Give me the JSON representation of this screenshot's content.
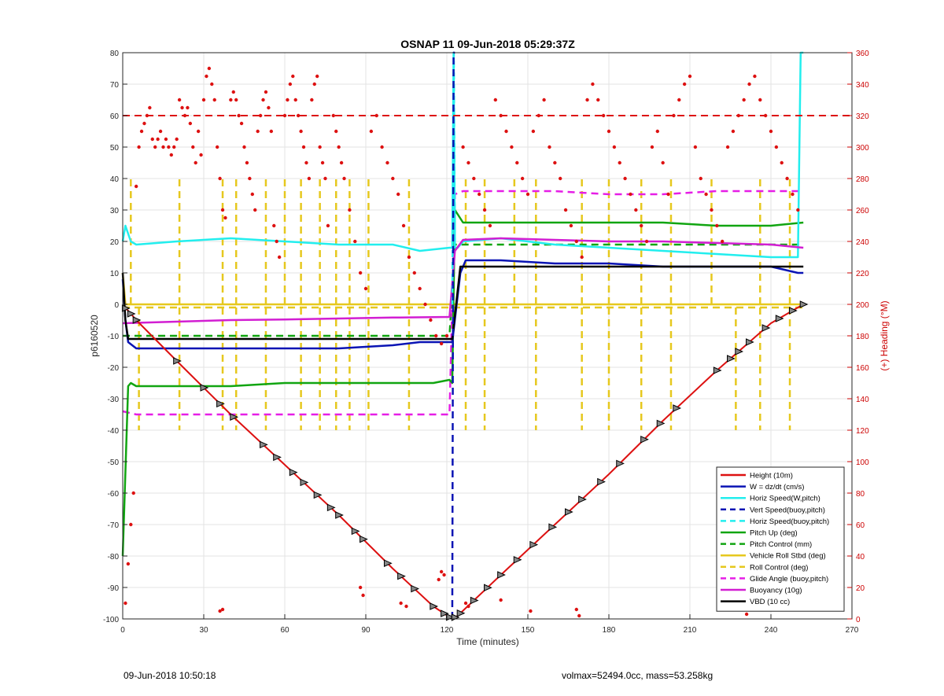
{
  "footer": {
    "timestamp": "09-Jun-2018 10:50:18",
    "info": "volmax=52494.0cc, mass=53.258kg"
  },
  "chart_data": {
    "type": "line",
    "title": "OSNAP 11 09-Jun-2018 05:29:37Z",
    "xlabel": "Time (minutes)",
    "ylabel": "p6160520",
    "y2label": "(+) Heading (°M)",
    "xlim": [
      0,
      270
    ],
    "ylim": [
      -100,
      80
    ],
    "y2lim": [
      0,
      360
    ],
    "xticks": [
      0,
      30,
      60,
      90,
      120,
      150,
      180,
      210,
      240,
      270
    ],
    "yticks": [
      -100,
      -90,
      -80,
      -70,
      -60,
      -50,
      -40,
      -30,
      -20,
      -10,
      0,
      10,
      20,
      30,
      40,
      50,
      60,
      70,
      80
    ],
    "y2ticks": [
      0,
      20,
      40,
      60,
      80,
      100,
      120,
      140,
      160,
      180,
      200,
      220,
      240,
      260,
      280,
      300,
      320,
      340,
      360
    ],
    "grid": true,
    "legend_position": "bottom-right",
    "colors": {
      "height": "#dd1111",
      "w": "#0a14b4",
      "horiz": "#22eeee",
      "pitch": "#11a511",
      "roll": "#e6c81e",
      "glide": "#e61ee6",
      "buoyancy": "#d21ed2",
      "vbd": "#000000",
      "heading": "#dd1111",
      "right_axis": "#cc0000"
    },
    "series": [
      {
        "name": "Height (10m)",
        "key": "height",
        "style": "solid",
        "x": [
          0,
          2,
          5,
          20,
          40,
          60,
          80,
          100,
          115,
          122,
          124,
          140,
          160,
          180,
          200,
          220,
          240,
          252
        ],
        "y": [
          -0.5,
          -2,
          -5,
          -18,
          -35,
          -51,
          -67,
          -84,
          -96,
          -100,
          -99,
          -86,
          -70,
          -54,
          -37,
          -21,
          -6,
          0
        ]
      },
      {
        "name": "W = dz/dt (cm/s)",
        "key": "w",
        "style": "solid",
        "x": [
          0,
          1,
          2,
          5,
          20,
          40,
          60,
          80,
          100,
          110,
          121,
          122,
          125,
          127,
          140,
          160,
          180,
          200,
          220,
          240,
          250,
          252
        ],
        "y": [
          8,
          -5,
          -12,
          -14,
          -14,
          -14,
          -14,
          -14,
          -13,
          -12,
          -12,
          -12,
          10,
          14,
          14,
          13,
          13,
          12,
          12,
          12,
          10,
          10
        ]
      },
      {
        "name": "Horiz Speed(W,pitch)",
        "key": "horiz",
        "style": "solid",
        "x": [
          0,
          1,
          3,
          5,
          20,
          40,
          60,
          80,
          100,
          110,
          121,
          122,
          122.5,
          123,
          124,
          126,
          140,
          160,
          180,
          200,
          220,
          240,
          250,
          251,
          252
        ],
        "y": [
          20,
          25,
          20,
          19,
          20,
          21,
          20,
          19,
          19,
          17,
          18,
          18,
          80,
          18,
          18,
          20,
          21,
          19,
          18,
          17,
          16,
          15,
          15,
          80,
          80
        ]
      },
      {
        "name": "Vert Speed(buoy,pitch)",
        "key": "vert",
        "style": "dashed",
        "x": [
          122,
          122.5,
          123
        ],
        "y": [
          -100,
          80,
          80
        ]
      },
      {
        "name": "Horiz Speed(buoy,pitch)",
        "key": "horizbp",
        "style": "dashed",
        "x": [
          122,
          122.6,
          123
        ],
        "y": [
          0,
          80,
          20
        ]
      },
      {
        "name": "Pitch Up (deg)",
        "key": "pitch",
        "style": "solid",
        "x": [
          0,
          2,
          3,
          5,
          20,
          40,
          60,
          80,
          100,
          115,
          121,
          122,
          123,
          126,
          140,
          160,
          180,
          200,
          220,
          240,
          252
        ],
        "y": [
          -80,
          -26,
          -25,
          -26,
          -26,
          -26,
          -25,
          -25,
          -25,
          -25,
          -24,
          -25,
          30,
          26,
          26,
          26,
          26,
          26,
          25,
          25,
          26
        ]
      },
      {
        "name": "Pitch Control (mm)",
        "key": "pitchc",
        "style": "dashed",
        "x": [
          0,
          3,
          20,
          60,
          100,
          121,
          123,
          126,
          160,
          200,
          252
        ],
        "y": [
          -10,
          -10,
          -10,
          -10,
          -10,
          -10,
          19,
          19,
          19,
          19,
          19
        ]
      },
      {
        "name": "Vehicle Roll Stbd (deg)",
        "key": "roll",
        "style": "solid",
        "x": [
          0,
          1,
          5,
          30,
          60,
          90,
          120,
          121,
          122,
          124,
          150,
          180,
          210,
          240,
          252
        ],
        "y": [
          10,
          0,
          0,
          0,
          0,
          0,
          0,
          0,
          0,
          0,
          0,
          0,
          0,
          0,
          0
        ]
      },
      {
        "name": "Roll Control (deg)",
        "key": "rollc",
        "style": "dashed",
        "x": [
          0,
          5,
          30,
          60,
          90,
          120,
          124,
          150,
          180,
          210,
          240,
          252
        ],
        "y": [
          -1,
          -1,
          -1,
          -1,
          -1,
          -1,
          -1,
          -1,
          -1,
          -1,
          -1,
          -1
        ]
      },
      {
        "name": "Glide Angle (buoy,pitch)",
        "key": "glide",
        "style": "dashed",
        "x": [
          0,
          5,
          20,
          40,
          60,
          80,
          100,
          121,
          123,
          126,
          140,
          160,
          180,
          200,
          220,
          240,
          252
        ],
        "y": [
          -34,
          -35,
          -35,
          -35,
          -35,
          -35,
          -35,
          -35,
          35,
          36,
          36,
          36,
          35,
          35,
          36,
          36,
          36
        ]
      },
      {
        "name": "Buoyancy (10g)",
        "key": "buoyancy",
        "style": "solid",
        "x": [
          0,
          20,
          40,
          60,
          80,
          100,
          121,
          123,
          126,
          140,
          160,
          180,
          200,
          220,
          240,
          252
        ],
        "y": [
          -6,
          -5.5,
          -5,
          -4.8,
          -4.5,
          -4.2,
          -4,
          17,
          20.5,
          21,
          20.5,
          20,
          20,
          19.5,
          19,
          18
        ]
      },
      {
        "name": "VBD (10 cc)",
        "key": "vbd",
        "style": "solid",
        "x": [
          0,
          1,
          2,
          20,
          60,
          100,
          121,
          122,
          125,
          150,
          200,
          252
        ],
        "y": [
          10,
          -5,
          -11,
          -11,
          -11,
          -11,
          -11,
          -11,
          12,
          12,
          12,
          12
        ]
      }
    ],
    "roll_control_spikes": {
      "x": [
        6,
        21,
        37,
        42,
        53,
        66,
        73,
        79,
        84,
        91,
        106,
        127,
        134,
        153,
        170,
        180,
        192,
        203,
        227,
        236,
        247
      ],
      "low": -40,
      "high": 40,
      "x_upper": [
        3,
        21,
        37,
        42,
        53,
        60,
        66,
        73,
        79,
        84,
        91,
        106,
        127,
        134,
        145,
        153,
        170,
        180,
        192,
        203,
        218,
        236,
        247
      ]
    },
    "heading_points": {
      "x": [
        5,
        6,
        7,
        8,
        9,
        10,
        11,
        12,
        13,
        14,
        15,
        16,
        17,
        18,
        19,
        20,
        21,
        22,
        23,
        24,
        25,
        26,
        27,
        28,
        29,
        30,
        31,
        32,
        33,
        34,
        35,
        36,
        37,
        38,
        40,
        41,
        42,
        43,
        44,
        45,
        46,
        47,
        48,
        49,
        50,
        51,
        52,
        53,
        54,
        55,
        56,
        57,
        58,
        60,
        61,
        62,
        63,
        64,
        65,
        66,
        67,
        68,
        69,
        70,
        71,
        72,
        73,
        74,
        75,
        76,
        78,
        79,
        80,
        81,
        82,
        84,
        86,
        88,
        90,
        92,
        94,
        96,
        98,
        100,
        102,
        104,
        106,
        108,
        110,
        112,
        114,
        116,
        118,
        120,
        126,
        128,
        130,
        132,
        134,
        136,
        138,
        140,
        142,
        144,
        146,
        148,
        150,
        152,
        154,
        156,
        158,
        160,
        162,
        164,
        166,
        168,
        170,
        172,
        174,
        176,
        178,
        180,
        182,
        184,
        186,
        188,
        190,
        192,
        194,
        196,
        198,
        200,
        202,
        204,
        206,
        208,
        210,
        212,
        214,
        216,
        218,
        220,
        222,
        224,
        226,
        228,
        230,
        232,
        234,
        236,
        238,
        240,
        242,
        244,
        246,
        248,
        250
      ],
      "y": [
        275,
        300,
        310,
        315,
        320,
        325,
        305,
        300,
        305,
        310,
        300,
        305,
        300,
        295,
        300,
        305,
        330,
        325,
        320,
        325,
        315,
        300,
        290,
        310,
        295,
        330,
        345,
        350,
        340,
        330,
        300,
        280,
        260,
        255,
        330,
        335,
        330,
        320,
        315,
        300,
        290,
        280,
        270,
        260,
        310,
        320,
        330,
        335,
        325,
        310,
        250,
        240,
        230,
        320,
        330,
        340,
        345,
        330,
        320,
        310,
        300,
        290,
        280,
        330,
        340,
        345,
        300,
        290,
        280,
        250,
        320,
        310,
        300,
        290,
        280,
        260,
        240,
        220,
        210,
        310,
        320,
        300,
        290,
        280,
        270,
        250,
        230,
        220,
        210,
        200,
        190,
        180,
        175,
        180,
        300,
        290,
        280,
        270,
        260,
        250,
        330,
        320,
        310,
        300,
        290,
        280,
        270,
        310,
        320,
        330,
        300,
        290,
        280,
        260,
        250,
        240,
        230,
        330,
        340,
        330,
        320,
        310,
        300,
        290,
        280,
        270,
        260,
        250,
        240,
        300,
        310,
        290,
        270,
        320,
        330,
        340,
        345,
        300,
        280,
        270,
        260,
        250,
        240,
        300,
        310,
        320,
        330,
        340,
        345,
        330,
        320,
        310,
        300,
        290,
        280,
        270,
        260
      ],
      "scattered_low": {
        "x": [
          36,
          37,
          88,
          89,
          103,
          105,
          117,
          118,
          119,
          127,
          128,
          140,
          151,
          168,
          169,
          226,
          227,
          231,
          1,
          2,
          3,
          4
        ],
        "y": [
          5,
          6,
          20,
          15,
          10,
          8,
          25,
          30,
          28,
          10,
          8,
          12,
          5,
          6,
          2,
          10,
          8,
          3,
          10,
          35,
          60,
          80
        ]
      },
      "reference_line": 320,
      "reference_style": "dashed"
    },
    "height_markers": {
      "x": [
        1,
        3,
        5,
        20,
        30,
        36,
        41,
        52,
        57,
        63,
        67,
        72,
        77,
        80,
        86,
        89,
        98,
        103,
        108,
        115,
        119,
        121,
        123,
        125,
        130,
        135,
        140,
        146,
        152,
        159,
        165,
        170,
        177,
        184,
        193,
        199,
        205,
        220,
        225,
        228,
        232,
        238,
        243,
        248,
        252
      ]
    }
  }
}
